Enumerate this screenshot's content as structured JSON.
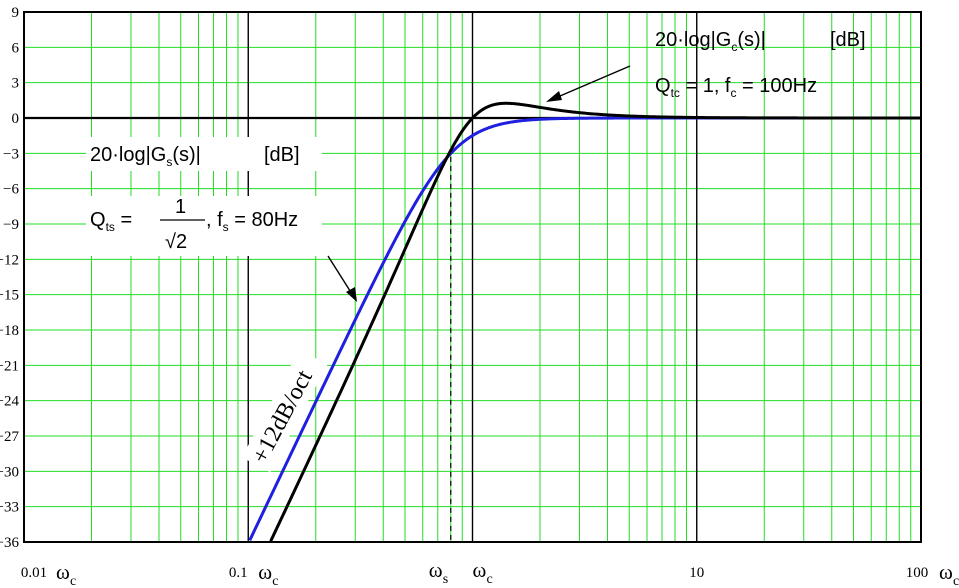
{
  "chart_data": {
    "type": "line",
    "title": "",
    "xlabel": "",
    "ylabel": "",
    "x_scale": "log",
    "xlim": [
      0.01,
      100
    ],
    "ylim": [
      -36,
      9
    ],
    "grid": true,
    "y_ticks": [
      9,
      6,
      3,
      0,
      -3,
      -6,
      -9,
      -12,
      -15,
      -18,
      -21,
      -24,
      -27,
      -30,
      -33,
      -36
    ],
    "y_tick_labels": [
      "9",
      "6",
      "3",
      "0",
      "−3",
      "−6",
      "−9",
      "−12",
      "−15",
      "−18",
      "−21",
      "−24",
      "−27",
      "−30",
      "−33",
      "−36"
    ],
    "x_tick_labels": [
      {
        "value": 0.01,
        "num": "0.01",
        "sym": "ω",
        "sub": "c"
      },
      {
        "value": 0.1,
        "num": "0.1",
        "sym": "ω",
        "sub": "c"
      },
      {
        "value": 10,
        "num": "10",
        "sym": "",
        "sub": ""
      },
      {
        "value": 100,
        "num": "100",
        "sym": "ω",
        "sub": "c"
      }
    ],
    "omega_markers": [
      {
        "value": 0.8,
        "sym": "ω",
        "sub": "s",
        "dashed": true
      },
      {
        "value": 1.0,
        "sym": "ω",
        "sub": "c",
        "dashed": false
      }
    ],
    "series": [
      {
        "key": "Gs",
        "color": "#1f1fe0",
        "Q": 0.7071,
        "w0": 0.8
      },
      {
        "key": "Gc",
        "color": "#000000",
        "Q": 1.0,
        "w0": 1.0
      }
    ],
    "annotations": {
      "gc_title": {
        "pre": "20·log|G",
        "sub": "c",
        "post": "(s)|",
        "unit": "[dB]"
      },
      "gc_params": {
        "q": "Q",
        "q_sub": "tc",
        "eq": " = 1, f",
        "f_sub": "c",
        "f_val": " = 100Hz"
      },
      "gs_title": {
        "pre": "20·log|G",
        "sub": "s",
        "post": "(s)|",
        "unit": "[dB]"
      },
      "gs_params": {
        "q": "Q",
        "q_sub": "ts",
        "eq": " =",
        "num": "1",
        "den": "√2",
        "f": ", f",
        "f_sub": "s",
        "f_val": " = 80Hz"
      },
      "slope": "+12dB/oct"
    }
  }
}
